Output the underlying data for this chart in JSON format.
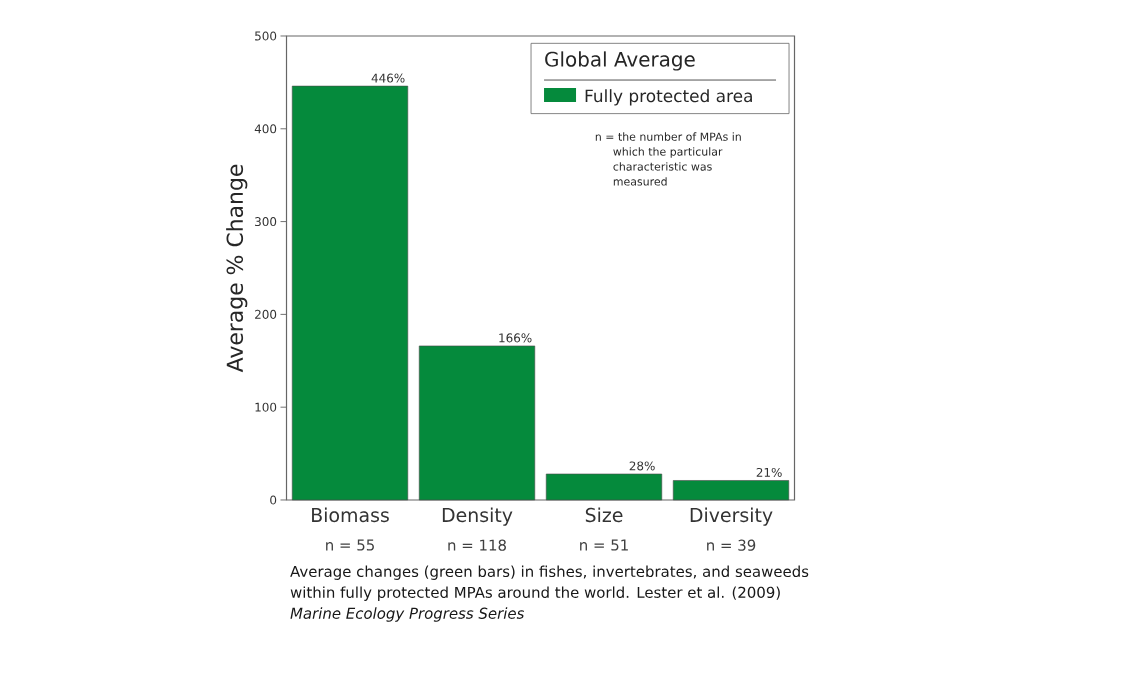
{
  "chart_data": {
    "type": "bar",
    "ylabel": "Average % Change",
    "legend_title": "Global Average",
    "categories": [
      "Biomass",
      "Density",
      "Size",
      "Diversity"
    ],
    "series": [
      {
        "name": "Fully protected area",
        "color": "#058a3c",
        "values": [
          446,
          166,
          28,
          21
        ],
        "value_labels": [
          "446%",
          "166%",
          "28%",
          "21%"
        ]
      }
    ],
    "ylim": [
      0,
      500
    ],
    "yticks": [
      0,
      100,
      200,
      300,
      400,
      500
    ],
    "legend": "top right",
    "annotations": [
      "n = 55",
      "n = 118",
      "n = 51",
      "n = 39",
      "n = the number of MPAs in which the particular characteristic was measured",
      "Average changes (green bars) in fishes, invertebrates, and seaweeds within fully protected MPAs around the world. Lester et al. (2009) *Marine Ecology Progress Series*"
    ]
  }
}
